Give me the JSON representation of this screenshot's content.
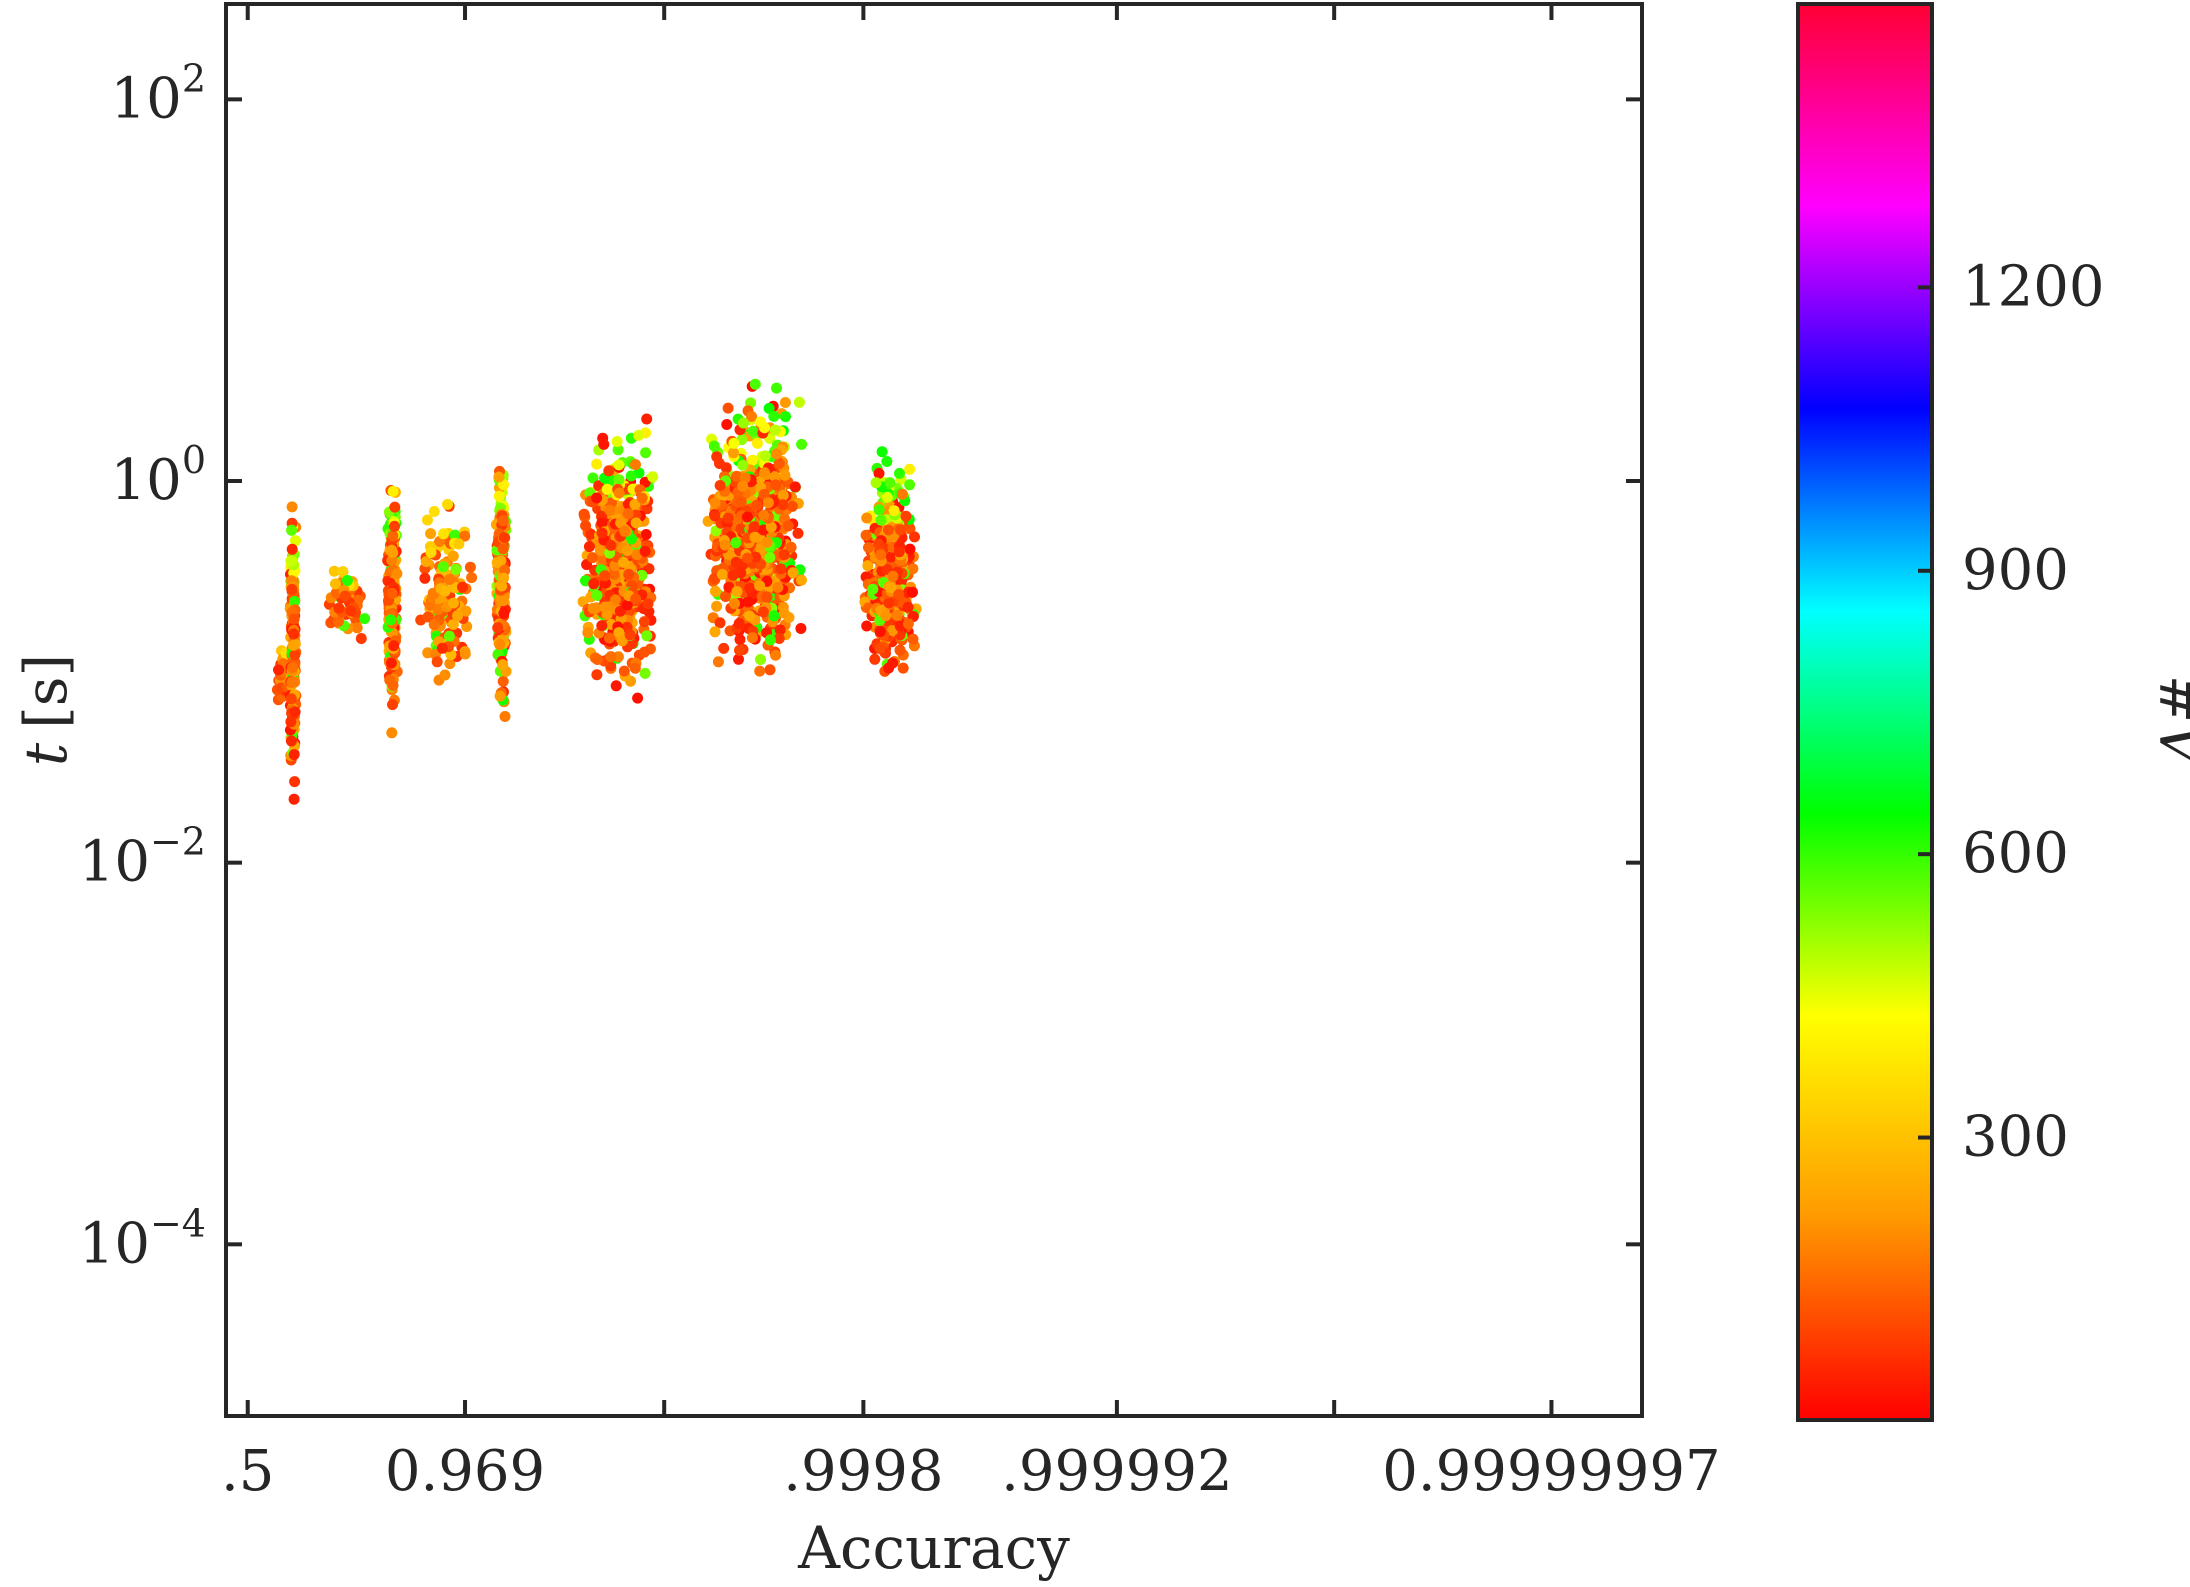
{
  "chart_data": {
    "type": "scatter",
    "xlabel": "Accuracy",
    "ylabel_var": "t",
    "ylabel_unit": "[s]",
    "x_axis": {
      "scale": "log-odds (accuracy digits)",
      "ticks": [
        {
          "digits": 0.3,
          "label": ".5"
        },
        {
          "digits": 1.5,
          "label": "0.969"
        },
        {
          "digits": 3.7,
          "label": ".9998"
        },
        {
          "digits": 5.1,
          "label": ".999992"
        },
        {
          "digits": 7.5,
          "label": "0.99999997"
        }
      ],
      "minor_ticks_digits": [
        2.6,
        6.3
      ],
      "range_digits": [
        0.18,
        8.0
      ]
    },
    "y_axis": {
      "scale": "log",
      "ticks": [
        {
          "value": 100,
          "base": "10",
          "exp": "2"
        },
        {
          "value": 1,
          "base": "10",
          "exp": "0"
        },
        {
          "value": 0.01,
          "base": "10",
          "exp": "−2"
        },
        {
          "value": 0.0001,
          "base": "10",
          "exp": "−4"
        }
      ],
      "range": [
        1.26e-05,
        316
      ]
    },
    "colorbar": {
      "label": "#V",
      "range": [
        1,
        1500
      ],
      "ticks": [
        {
          "value": 300,
          "label": "300"
        },
        {
          "value": 600,
          "label": "600"
        },
        {
          "value": 900,
          "label": "900"
        },
        {
          "value": 1200,
          "label": "1200"
        }
      ],
      "colormap": [
        "#ff0000",
        "#ff9900",
        "#ffff00",
        "#00ff00",
        "#00ffff",
        "#0000ff",
        "#ff00ff",
        "#ff0033"
      ]
    },
    "clusters": [
      {
        "x_digits": 0.5,
        "x_spread": 0.09,
        "t_min": 0.06,
        "t_max": 0.15,
        "count": 40,
        "v": [
          40,
          230
        ]
      },
      {
        "x_digits": 0.55,
        "x_spread": 0.03,
        "t_min": 0.016,
        "t_max": 1.1,
        "count": 170,
        "v": [
          30,
          620
        ]
      },
      {
        "x_digits": 0.85,
        "x_spread": 0.18,
        "t_min": 0.13,
        "t_max": 0.38,
        "count": 55,
        "v": [
          60,
          220
        ]
      },
      {
        "x_digits": 1.1,
        "x_spread": 0.05,
        "t_min": 0.035,
        "t_max": 1.6,
        "count": 200,
        "v": [
          30,
          620
        ]
      },
      {
        "x_digits": 1.4,
        "x_spread": 0.25,
        "t_min": 0.08,
        "t_max": 0.85,
        "count": 140,
        "v": [
          60,
          300
        ]
      },
      {
        "x_digits": 1.7,
        "x_spread": 0.05,
        "t_min": 0.045,
        "t_max": 2.2,
        "count": 200,
        "v": [
          30,
          620
        ]
      },
      {
        "x_digits": 2.35,
        "x_spread": 0.35,
        "t_min": 0.06,
        "t_max": 2.5,
        "count": 500,
        "v": [
          20,
          640
        ]
      },
      {
        "x_digits": 3.1,
        "x_spread": 0.45,
        "t_min": 0.07,
        "t_max": 4.0,
        "count": 650,
        "v": [
          20,
          640
        ]
      },
      {
        "x_digits": 3.85,
        "x_spread": 0.25,
        "t_min": 0.08,
        "t_max": 1.5,
        "count": 500,
        "v": [
          20,
          640
        ]
      }
    ]
  }
}
